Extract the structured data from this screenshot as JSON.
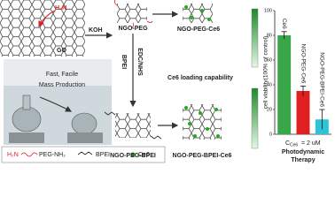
{
  "labels": {
    "go": "GO",
    "amine": "H₂N",
    "koh": "KOH",
    "fast": "Fast, Facile",
    "mass": "Mass Production",
    "ngo_peg": "NGO-PEG",
    "ngo_peg_ce6": "NGO-PEG-Ce6",
    "bpei": "BPEI",
    "edc": "EDC/NHS",
    "ngo_peg_bpei": "NGO-PEG-BPEI",
    "ngo_peg_bpei_ce6": "NGO-PEG-BPEI-Ce6",
    "loading": "Ce6 loading capability",
    "conc_symbol": "C",
    "conc_subscript": "Ce6",
    "conc_value": "= 2 uM",
    "pdt1": "Photodynamic",
    "pdt2": "Therapy"
  },
  "legend": {
    "amine": "H₂N",
    "peg": "PEG-NH₂",
    "bpei": "BPEI",
    "ce6": "Ce6"
  },
  "chart_data": {
    "type": "bar",
    "y_label": "cell viability(100% of control)",
    "categories": [
      "Ce6",
      "NGO-PEG-Ce6",
      "NGO-PEG-BPEI-Ce6"
    ],
    "values": [
      80,
      35,
      12
    ],
    "errors": [
      3,
      4,
      8
    ],
    "colors": [
      "#3aa64a",
      "#e02020",
      "#2ec4d8"
    ],
    "ylim": [
      0,
      100
    ],
    "yticks": [
      0,
      20,
      40,
      60,
      80,
      100
    ]
  }
}
